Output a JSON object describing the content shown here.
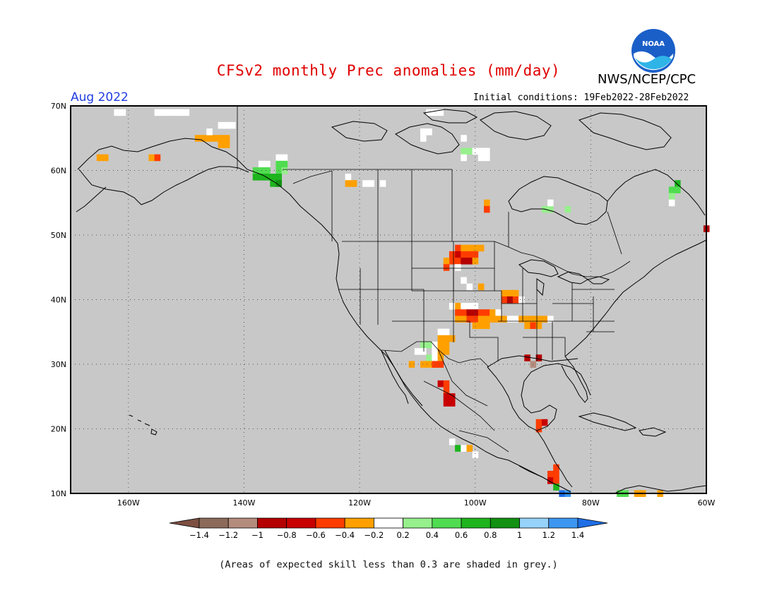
{
  "title": "CFSv2 monthly Prec anomalies (mm/day)",
  "agency": "NWS/NCEP/CPC",
  "logo_text": "NOAA",
  "month": "Aug 2022",
  "initial_conditions": "Initial conditions: 19Feb2022-28Feb2022",
  "footnote": "(Areas of expected skill less than 0.3 are shaded in grey.)",
  "map": {
    "lon_range": [
      -170,
      -60
    ],
    "lat_range": [
      10,
      70
    ],
    "lon_ticks": [
      "160W",
      "140W",
      "120W",
      "100W",
      "80W",
      "60W"
    ],
    "lat_ticks": [
      "10N",
      "20N",
      "30N",
      "40N",
      "50N",
      "60N",
      "70N"
    ],
    "grey_color": "#c8c8c8",
    "grid": true
  },
  "colorbar": {
    "labels": [
      "-1.4",
      "-1.2",
      "-1",
      "-0.8",
      "-0.6",
      "-0.4",
      "-0.2",
      "0.2",
      "0.4",
      "0.6",
      "0.8",
      "1",
      "1.2",
      "1.4"
    ],
    "colors": [
      "#7d4f42",
      "#8c6a5a",
      "#b48c7d",
      "#b40000",
      "#c80000",
      "#ff3c00",
      "#ffa000",
      "#ffffff",
      "#96f08c",
      "#50dc50",
      "#1eb41e",
      "#129112",
      "#96d2fa",
      "#3c96f0",
      "#1e6ee6"
    ]
  },
  "anomaly_cells": [
    {
      "lon": -165,
      "lat": 62,
      "color": "#ffa000"
    },
    {
      "lon": -164,
      "lat": 62,
      "color": "#ffa000"
    },
    {
      "lon": -156,
      "lat": 62,
      "color": "#ffa000"
    },
    {
      "lon": -155,
      "lat": 62,
      "color": "#ff3c00"
    },
    {
      "lon": -148,
      "lat": 65,
      "color": "#ffa000"
    },
    {
      "lon": -147,
      "lat": 65,
      "color": "#ffa000"
    },
    {
      "lon": -146,
      "lat": 65,
      "color": "#ffa000"
    },
    {
      "lon": -145,
      "lat": 65,
      "color": "#ffa000"
    },
    {
      "lon": -144,
      "lat": 65,
      "color": "#ffa000"
    },
    {
      "lon": -143,
      "lat": 65,
      "color": "#ffa000"
    },
    {
      "lon": -144,
      "lat": 64,
      "color": "#ffa000"
    },
    {
      "lon": -143,
      "lat": 64,
      "color": "#ffa000"
    },
    {
      "lon": -144,
      "lat": 67,
      "color": "#ffffff"
    },
    {
      "lon": -143,
      "lat": 67,
      "color": "#ffffff"
    },
    {
      "lon": -142,
      "lat": 67,
      "color": "#ffffff"
    },
    {
      "lon": -146,
      "lat": 66,
      "color": "#ffffff"
    },
    {
      "lon": -137,
      "lat": 61,
      "color": "#ffffff"
    },
    {
      "lon": -136,
      "lat": 61,
      "color": "#ffffff"
    },
    {
      "lon": -134,
      "lat": 62,
      "color": "#ffffff"
    },
    {
      "lon": -133,
      "lat": 62,
      "color": "#ffffff"
    },
    {
      "lon": -138,
      "lat": 60,
      "color": "#50dc50"
    },
    {
      "lon": -137,
      "lat": 60,
      "color": "#50dc50"
    },
    {
      "lon": -136,
      "lat": 60,
      "color": "#50dc50"
    },
    {
      "lon": -138,
      "lat": 59,
      "color": "#1eb41e"
    },
    {
      "lon": -137,
      "lat": 59,
      "color": "#1eb41e"
    },
    {
      "lon": -136,
      "lat": 59,
      "color": "#1eb41e"
    },
    {
      "lon": -135,
      "lat": 59,
      "color": "#1eb41e"
    },
    {
      "lon": -134,
      "lat": 60,
      "color": "#50dc50"
    },
    {
      "lon": -133,
      "lat": 60,
      "color": "#96f08c"
    },
    {
      "lon": -134,
      "lat": 61,
      "color": "#50dc50"
    },
    {
      "lon": -133,
      "lat": 61,
      "color": "#50dc50"
    },
    {
      "lon": -134,
      "lat": 59,
      "color": "#1eb41e"
    },
    {
      "lon": -135,
      "lat": 58,
      "color": "#1eb41e"
    },
    {
      "lon": -134,
      "lat": 58,
      "color": "#129112"
    },
    {
      "lon": -122,
      "lat": 59,
      "color": "#ffffff"
    },
    {
      "lon": -122,
      "lat": 58,
      "color": "#ffa000"
    },
    {
      "lon": -121,
      "lat": 58,
      "color": "#ffa000"
    },
    {
      "lon": -119,
      "lat": 58,
      "color": "#ffffff"
    },
    {
      "lon": -118,
      "lat": 58,
      "color": "#ffffff"
    },
    {
      "lon": -116,
      "lat": 58,
      "color": "#ffffff"
    },
    {
      "lon": -102,
      "lat": 63,
      "color": "#96f08c"
    },
    {
      "lon": -101,
      "lat": 63,
      "color": "#96f08c"
    },
    {
      "lon": -100,
      "lat": 63,
      "color": "#ffffff"
    },
    {
      "lon": -99,
      "lat": 63,
      "color": "#ffffff"
    },
    {
      "lon": -98,
      "lat": 63,
      "color": "#ffffff"
    },
    {
      "lon": -99,
      "lat": 62,
      "color": "#ffffff"
    },
    {
      "lon": -98,
      "lat": 62,
      "color": "#ffffff"
    },
    {
      "lon": -102,
      "lat": 62,
      "color": "#ffffff"
    },
    {
      "lon": -109,
      "lat": 66,
      "color": "#ffffff"
    },
    {
      "lon": -108,
      "lat": 66,
      "color": "#ffffff"
    },
    {
      "lon": -109,
      "lat": 65,
      "color": "#ffffff"
    },
    {
      "lon": -102,
      "lat": 65,
      "color": "#ffffff"
    },
    {
      "lon": -98,
      "lat": 55,
      "color": "#ffa000"
    },
    {
      "lon": -98,
      "lat": 54,
      "color": "#ff3c00"
    },
    {
      "lon": -88,
      "lat": 54,
      "color": "#96f08c"
    },
    {
      "lon": -87,
      "lat": 54,
      "color": "#96f08c"
    },
    {
      "lon": -87,
      "lat": 55,
      "color": "#ffffff"
    },
    {
      "lon": -84,
      "lat": 54,
      "color": "#96f08c"
    },
    {
      "lon": -65,
      "lat": 58,
      "color": "#1eb41e"
    },
    {
      "lon": -66,
      "lat": 57,
      "color": "#50dc50"
    },
    {
      "lon": -65,
      "lat": 57,
      "color": "#50dc50"
    },
    {
      "lon": -66,
      "lat": 56,
      "color": "#96f08c"
    },
    {
      "lon": -66,
      "lat": 55,
      "color": "#ffffff"
    },
    {
      "lon": -60,
      "lat": 51,
      "color": "#b40000"
    },
    {
      "lon": -103,
      "lat": 48,
      "color": "#ff3c00"
    },
    {
      "lon": -102,
      "lat": 48,
      "color": "#ffa000"
    },
    {
      "lon": -101,
      "lat": 48,
      "color": "#ffa000"
    },
    {
      "lon": -100,
      "lat": 48,
      "color": "#ffa000"
    },
    {
      "lon": -99,
      "lat": 48,
      "color": "#ffa000"
    },
    {
      "lon": -104,
      "lat": 47,
      "color": "#ff3c00"
    },
    {
      "lon": -103,
      "lat": 47,
      "color": "#c80000"
    },
    {
      "lon": -102,
      "lat": 47,
      "color": "#ff3c00"
    },
    {
      "lon": -101,
      "lat": 47,
      "color": "#ff3c00"
    },
    {
      "lon": -100,
      "lat": 47,
      "color": "#ff3c00"
    },
    {
      "lon": -104,
      "lat": 46,
      "color": "#ff3c00"
    },
    {
      "lon": -103,
      "lat": 46,
      "color": "#ff3c00"
    },
    {
      "lon": -102,
      "lat": 46,
      "color": "#b40000"
    },
    {
      "lon": -101,
      "lat": 46,
      "color": "#b40000"
    },
    {
      "lon": -100,
      "lat": 46,
      "color": "#ffa000"
    },
    {
      "lon": -105,
      "lat": 46,
      "color": "#ffa000"
    },
    {
      "lon": -105,
      "lat": 45,
      "color": "#ff3c00"
    },
    {
      "lon": -103,
      "lat": 45,
      "color": "#ffffff"
    },
    {
      "lon": -102,
      "lat": 43,
      "color": "#ffffff"
    },
    {
      "lon": -101,
      "lat": 42,
      "color": "#ffffff"
    },
    {
      "lon": -99,
      "lat": 42,
      "color": "#ffa000"
    },
    {
      "lon": -95,
      "lat": 41,
      "color": "#ffa000"
    },
    {
      "lon": -94,
      "lat": 41,
      "color": "#ffa000"
    },
    {
      "lon": -93,
      "lat": 41,
      "color": "#ffa000"
    },
    {
      "lon": -95,
      "lat": 40,
      "color": "#ff3c00"
    },
    {
      "lon": -94,
      "lat": 40,
      "color": "#b40000"
    },
    {
      "lon": -93,
      "lat": 40,
      "color": "#ff3c00"
    },
    {
      "lon": -92,
      "lat": 40,
      "color": "#ffffff"
    },
    {
      "lon": -104,
      "lat": 39,
      "color": "#ffffff"
    },
    {
      "lon": -103,
      "lat": 39,
      "color": "#ffa000"
    },
    {
      "lon": -102,
      "lat": 39,
      "color": "#ffffff"
    },
    {
      "lon": -101,
      "lat": 39,
      "color": "#ffffff"
    },
    {
      "lon": -100,
      "lat": 39,
      "color": "#ffffff"
    },
    {
      "lon": -103,
      "lat": 38,
      "color": "#ff3c00"
    },
    {
      "lon": -102,
      "lat": 38,
      "color": "#ff3c00"
    },
    {
      "lon": -101,
      "lat": 38,
      "color": "#b40000"
    },
    {
      "lon": -100,
      "lat": 38,
      "color": "#b40000"
    },
    {
      "lon": -99,
      "lat": 38,
      "color": "#ff3c00"
    },
    {
      "lon": -98,
      "lat": 38,
      "color": "#ff3c00"
    },
    {
      "lon": -97,
      "lat": 38,
      "color": "#ffa000"
    },
    {
      "lon": -96,
      "lat": 38,
      "color": "#ffffff"
    },
    {
      "lon": -103,
      "lat": 37,
      "color": "#ffa000"
    },
    {
      "lon": -102,
      "lat": 37,
      "color": "#ffa000"
    },
    {
      "lon": -101,
      "lat": 37,
      "color": "#ff3c00"
    },
    {
      "lon": -100,
      "lat": 37,
      "color": "#ff3c00"
    },
    {
      "lon": -99,
      "lat": 37,
      "color": "#ffa000"
    },
    {
      "lon": -98,
      "lat": 37,
      "color": "#ffa000"
    },
    {
      "lon": -97,
      "lat": 37,
      "color": "#ffa000"
    },
    {
      "lon": -96,
      "lat": 37,
      "color": "#ffa000"
    },
    {
      "lon": -95,
      "lat": 37,
      "color": "#ffa000"
    },
    {
      "lon": -94,
      "lat": 37,
      "color": "#ffffff"
    },
    {
      "lon": -93,
      "lat": 37,
      "color": "#ffffff"
    },
    {
      "lon": -92,
      "lat": 37,
      "color": "#ffa000"
    },
    {
      "lon": -91,
      "lat": 37,
      "color": "#ffa000"
    },
    {
      "lon": -90,
      "lat": 37,
      "color": "#ffa000"
    },
    {
      "lon": -89,
      "lat": 37,
      "color": "#ffa000"
    },
    {
      "lon": -88,
      "lat": 37,
      "color": "#ffa000"
    },
    {
      "lon": -87,
      "lat": 37,
      "color": "#ffffff"
    },
    {
      "lon": -100,
      "lat": 36,
      "color": "#ffa000"
    },
    {
      "lon": -99,
      "lat": 36,
      "color": "#ffa000"
    },
    {
      "lon": -98,
      "lat": 36,
      "color": "#ffa000"
    },
    {
      "lon": -91,
      "lat": 36,
      "color": "#ffa000"
    },
    {
      "lon": -90,
      "lat": 36,
      "color": "#ff3c00"
    },
    {
      "lon": -89,
      "lat": 36,
      "color": "#ffa000"
    },
    {
      "lon": -106,
      "lat": 35,
      "color": "#ffffff"
    },
    {
      "lon": -105,
      "lat": 35,
      "color": "#ffffff"
    },
    {
      "lon": -106,
      "lat": 34,
      "color": "#ffa000"
    },
    {
      "lon": -105,
      "lat": 34,
      "color": "#ffa000"
    },
    {
      "lon": -104,
      "lat": 34,
      "color": "#ffa000"
    },
    {
      "lon": -109,
      "lat": 33,
      "color": "#96f08c"
    },
    {
      "lon": -108,
      "lat": 33,
      "color": "#96f08c"
    },
    {
      "lon": -107,
      "lat": 33,
      "color": "#ffffff"
    },
    {
      "lon": -106,
      "lat": 33,
      "color": "#ffa000"
    },
    {
      "lon": -105,
      "lat": 33,
      "color": "#ffa000"
    },
    {
      "lon": -110,
      "lat": 32,
      "color": "#ffffff"
    },
    {
      "lon": -109,
      "lat": 32,
      "color": "#ffffff"
    },
    {
      "lon": -107,
      "lat": 32,
      "color": "#ffffff"
    },
    {
      "lon": -106,
      "lat": 32,
      "color": "#ffa000"
    },
    {
      "lon": -105,
      "lat": 32,
      "color": "#ffa000"
    },
    {
      "lon": -108,
      "lat": 31,
      "color": "#96f08c"
    },
    {
      "lon": -107,
      "lat": 31,
      "color": "#ffffff"
    },
    {
      "lon": -106,
      "lat": 31,
      "color": "#ffa000"
    },
    {
      "lon": -111,
      "lat": 30,
      "color": "#ffa000"
    },
    {
      "lon": -109,
      "lat": 30,
      "color": "#ffa000"
    },
    {
      "lon": -108,
      "lat": 30,
      "color": "#ffa000"
    },
    {
      "lon": -107,
      "lat": 30,
      "color": "#ff3c00"
    },
    {
      "lon": -106,
      "lat": 30,
      "color": "#ff3c00"
    },
    {
      "lon": -91,
      "lat": 31,
      "color": "#b40000"
    },
    {
      "lon": -89,
      "lat": 31,
      "color": "#b40000"
    },
    {
      "lon": -90,
      "lat": 30,
      "color": "#b48c7d"
    },
    {
      "lon": -106,
      "lat": 27,
      "color": "#c80000"
    },
    {
      "lon": -105,
      "lat": 27,
      "color": "#ff3c00"
    },
    {
      "lon": -105,
      "lat": 26,
      "color": "#ff3c00"
    },
    {
      "lon": -105,
      "lat": 25,
      "color": "#c80000"
    },
    {
      "lon": -104,
      "lat": 25,
      "color": "#c80000"
    },
    {
      "lon": -105,
      "lat": 24,
      "color": "#c80000"
    },
    {
      "lon": -104,
      "lat": 24,
      "color": "#c80000"
    },
    {
      "lon": -89,
      "lat": 21,
      "color": "#ff3c00"
    },
    {
      "lon": -88,
      "lat": 21,
      "color": "#c80000"
    },
    {
      "lon": -89,
      "lat": 20,
      "color": "#ff3c00"
    },
    {
      "lon": -104,
      "lat": 18,
      "color": "#ffffff"
    },
    {
      "lon": -103,
      "lat": 17,
      "color": "#1eb41e"
    },
    {
      "lon": -102,
      "lat": 17,
      "color": "#ffffff"
    },
    {
      "lon": -101,
      "lat": 17,
      "color": "#ffa000"
    },
    {
      "lon": -100,
      "lat": 16,
      "color": "#ffffff"
    },
    {
      "lon": -86,
      "lat": 14,
      "color": "#ff3c00"
    },
    {
      "lon": -87,
      "lat": 13,
      "color": "#ff3c00"
    },
    {
      "lon": -86,
      "lat": 13,
      "color": "#ff3c00"
    },
    {
      "lon": -87,
      "lat": 12,
      "color": "#c80000"
    },
    {
      "lon": -86,
      "lat": 12,
      "color": "#ff3c00"
    },
    {
      "lon": -86,
      "lat": 11,
      "color": "#1eb41e"
    },
    {
      "lon": -85,
      "lat": 10,
      "color": "#1e6ee6"
    },
    {
      "lon": -84,
      "lat": 10,
      "color": "#3c96f0"
    },
    {
      "lon": -75,
      "lat": 10,
      "color": "#50dc50"
    },
    {
      "lon": -74,
      "lat": 10,
      "color": "#50dc50"
    },
    {
      "lon": -72,
      "lat": 10,
      "color": "#ffa000"
    },
    {
      "lon": -71,
      "lat": 10,
      "color": "#ffa000"
    },
    {
      "lon": -68,
      "lat": 10,
      "color": "#ffa000"
    },
    {
      "lon": -162,
      "lat": 69,
      "color": "#ffffff"
    },
    {
      "lon": -161,
      "lat": 69,
      "color": "#ffffff"
    },
    {
      "lon": -155,
      "lat": 69,
      "color": "#ffffff"
    },
    {
      "lon": -154,
      "lat": 69,
      "color": "#ffffff"
    },
    {
      "lon": -153,
      "lat": 69,
      "color": "#ffffff"
    },
    {
      "lon": -152,
      "lat": 69,
      "color": "#ffffff"
    },
    {
      "lon": -151,
      "lat": 69,
      "color": "#ffffff"
    },
    {
      "lon": -150,
      "lat": 69,
      "color": "#ffffff"
    },
    {
      "lon": -108,
      "lat": 69,
      "color": "#ffffff"
    },
    {
      "lon": -107,
      "lat": 69,
      "color": "#ffffff"
    },
    {
      "lon": -106,
      "lat": 69,
      "color": "#ffffff"
    }
  ]
}
